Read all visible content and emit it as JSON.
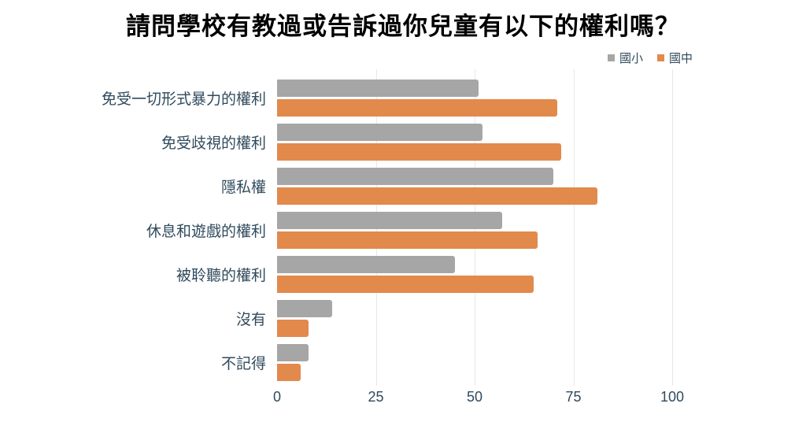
{
  "title": "請問學校有教過或告訴過你兒童有以下的權利嗎？",
  "colors": {
    "title": "#000000",
    "text": "#2F4A5C",
    "gridline": "#E8E8E8",
    "background": "#FFFFFF"
  },
  "chart_data": {
    "type": "bar",
    "orientation": "horizontal",
    "title": "請問學校有教過或告訴過你兒童有以下的權利嗎？",
    "categories": [
      "免受一切形式暴力的權利",
      "免受歧視的權利",
      "隱私權",
      "休息和遊戲的權利",
      "被聆聽的權利",
      "沒有",
      "不記得"
    ],
    "series": [
      {
        "key": "elementary",
        "name": "國小",
        "color": "#A6A6A6",
        "values": [
          51,
          52,
          70,
          57,
          45,
          14,
          8
        ]
      },
      {
        "key": "junior-high",
        "name": "國中",
        "color": "#E2894C",
        "values": [
          71,
          72,
          81,
          66,
          65,
          8,
          6
        ]
      }
    ],
    "xlabel": "",
    "ylabel": "",
    "xlim": [
      0,
      100
    ],
    "xticks": [
      0,
      25,
      50,
      75,
      100
    ],
    "grid": true,
    "legend_position": "top-right"
  }
}
